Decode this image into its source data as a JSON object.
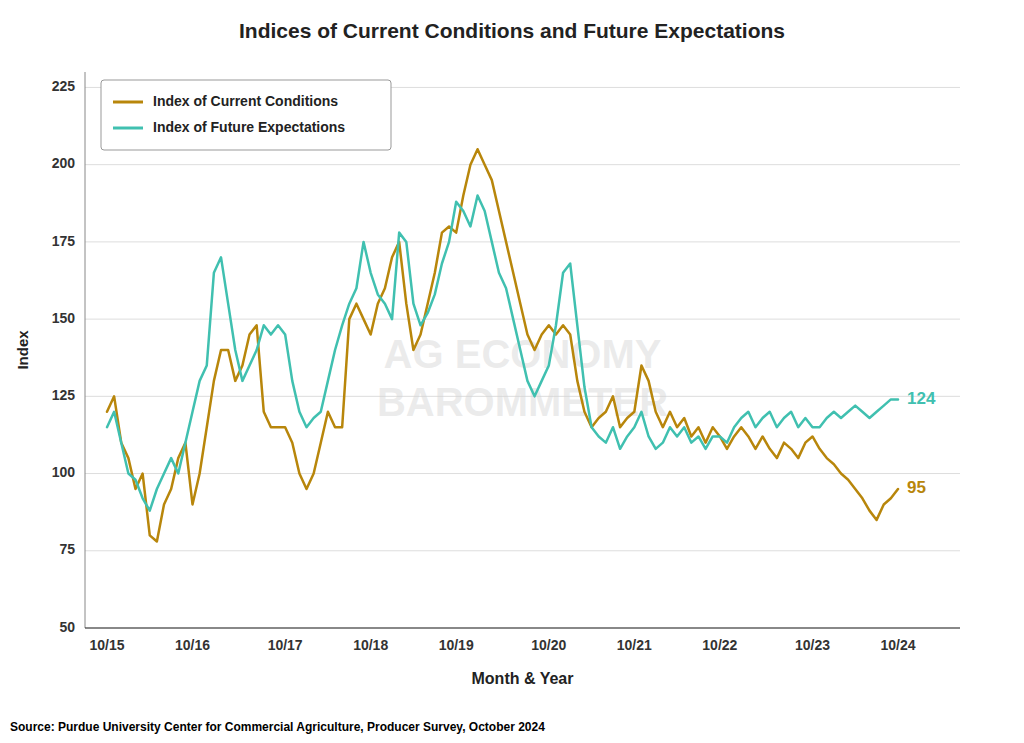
{
  "chart_data": {
    "type": "line",
    "title": "Indices of Current Conditions and Future Expectations",
    "x_label": "Month & Year",
    "y_label": "Index",
    "source": "Source: Purdue University Center for Commercial Agriculture, Producer Survey, October 2024",
    "categories": [
      "10/15",
      null,
      null,
      null,
      null,
      null,
      null,
      null,
      null,
      null,
      null,
      null,
      "10/16",
      null,
      null,
      null,
      null,
      null,
      null,
      null,
      null,
      null,
      null,
      null,
      null,
      "10/17",
      null,
      null,
      null,
      null,
      null,
      null,
      null,
      null,
      null,
      null,
      null,
      "10/18",
      null,
      null,
      null,
      null,
      null,
      null,
      null,
      null,
      null,
      null,
      null,
      "10/19",
      null,
      null,
      null,
      null,
      null,
      null,
      null,
      null,
      null,
      null,
      null,
      null,
      "10/20",
      null,
      null,
      null,
      null,
      null,
      null,
      null,
      null,
      null,
      null,
      null,
      "10/21",
      null,
      null,
      null,
      null,
      null,
      null,
      null,
      null,
      null,
      null,
      null,
      "10/22",
      null,
      null,
      null,
      null,
      null,
      null,
      null,
      null,
      null,
      null,
      null,
      null,
      "10/23",
      null,
      null,
      null,
      null,
      null,
      null,
      null,
      null,
      null,
      null,
      null,
      "10/24"
    ],
    "series": [
      {
        "name": "Index of Current Conditions",
        "color": "#B8860B",
        "values": [
          120,
          125,
          110,
          105,
          95,
          100,
          80,
          78,
          90,
          95,
          105,
          110,
          90,
          100,
          115,
          130,
          140,
          140,
          130,
          135,
          145,
          148,
          120,
          115,
          115,
          115,
          110,
          100,
          95,
          100,
          110,
          120,
          115,
          115,
          150,
          155,
          150,
          145,
          155,
          160,
          170,
          175,
          155,
          140,
          145,
          155,
          165,
          178,
          180,
          178,
          190,
          200,
          205,
          200,
          195,
          185,
          175,
          165,
          155,
          145,
          140,
          145,
          148,
          145,
          148,
          145,
          130,
          120,
          115,
          118,
          120,
          125,
          115,
          118,
          120,
          135,
          130,
          120,
          115,
          120,
          115,
          118,
          112,
          115,
          110,
          115,
          112,
          108,
          112,
          115,
          112,
          108,
          112,
          108,
          105,
          110,
          108,
          105,
          110,
          112,
          108,
          105,
          103,
          100,
          98,
          95,
          92,
          88,
          85,
          90,
          92,
          95
        ]
      },
      {
        "name": "Index of Future Expectations",
        "color": "#40C0B0",
        "values": [
          115,
          120,
          110,
          100,
          98,
          92,
          88,
          95,
          100,
          105,
          100,
          110,
          120,
          130,
          135,
          165,
          170,
          155,
          140,
          130,
          135,
          140,
          148,
          145,
          148,
          145,
          130,
          120,
          115,
          118,
          120,
          130,
          140,
          148,
          155,
          160,
          175,
          165,
          158,
          155,
          150,
          178,
          175,
          155,
          148,
          152,
          158,
          168,
          175,
          188,
          185,
          180,
          190,
          185,
          175,
          165,
          160,
          150,
          140,
          130,
          125,
          130,
          135,
          148,
          165,
          168,
          148,
          128,
          115,
          112,
          110,
          115,
          108,
          112,
          115,
          120,
          112,
          108,
          110,
          115,
          112,
          115,
          110,
          112,
          108,
          112,
          112,
          110,
          115,
          118,
          120,
          115,
          118,
          120,
          115,
          118,
          120,
          115,
          118,
          115,
          115,
          118,
          120,
          118,
          120,
          122,
          120,
          118,
          120,
          122,
          124,
          124
        ]
      }
    ],
    "annotations": [
      {
        "text": "124",
        "y": 124,
        "color": "#40C0B0"
      },
      {
        "text": "95",
        "y": 95,
        "color": "#B8860B"
      },
      {
        "text": "AG ECONOMY\nBAROMMETER"
      }
    ],
    "ylim": [
      50,
      230
    ],
    "yticks": [
      50,
      75,
      100,
      125,
      150,
      175,
      200,
      225
    ],
    "grid": true,
    "legend": "upper left"
  }
}
